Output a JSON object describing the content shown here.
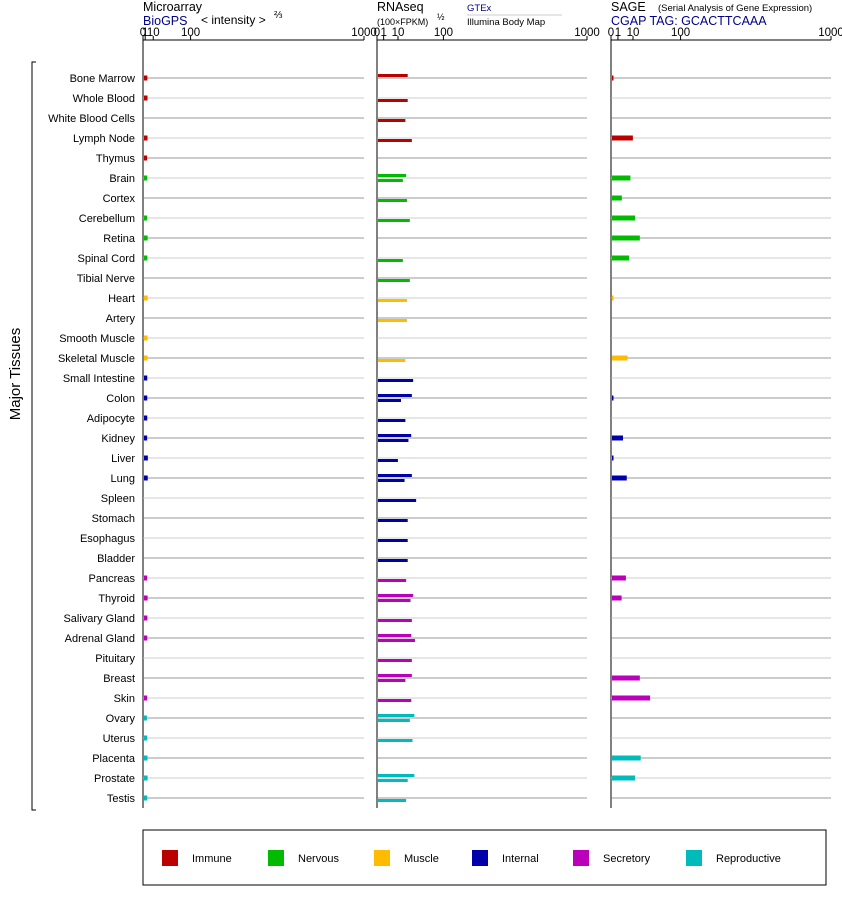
{
  "panels": {
    "microarray": {
      "title": "Microarray",
      "source": "BioGPS",
      "scale_label": "< intensity >",
      "scale_exp": "⅔"
    },
    "rnaseq": {
      "title": "RNAseq",
      "scale_label": "(100×FPKM)",
      "scale_exp": "½",
      "source_1": "GTEx",
      "source_2": "Illumina Body Map"
    },
    "sage": {
      "title": "SAGE",
      "subtitle": "(Serial Analysis of Gene Expression)",
      "source": "CGAP TAG: GCACTTCAAA"
    }
  },
  "y_axis_label": "Major Tissues",
  "colors": {
    "immune": "#bb0000",
    "nervous": "#00bb00",
    "muscle": "#ffbb00",
    "internal": "#0000aa",
    "secretory": "#bb00bb",
    "reproductive": "#00bbbb",
    "axis": "#000000",
    "row_line_dark": "#777777",
    "row_line_light": "#bbbbbb",
    "source_text": "#000088"
  },
  "legend": [
    {
      "key": "immune",
      "label": "Immune"
    },
    {
      "key": "nervous",
      "label": "Nervous"
    },
    {
      "key": "muscle",
      "label": "Muscle"
    },
    {
      "key": "internal",
      "label": "Internal"
    },
    {
      "key": "secretory",
      "label": "Secretory"
    },
    {
      "key": "reproductive",
      "label": "Reproductive"
    }
  ],
  "chart_data": {
    "type": "bar",
    "scale": "power",
    "ticks": [
      0,
      1,
      10,
      100,
      1000
    ],
    "tick_labels": [
      "0",
      "1",
      "10",
      "100",
      "1000"
    ],
    "xlim": [
      0,
      1000
    ],
    "grid": true,
    "legend_position": "bottom",
    "categories": [
      "Bone Marrow",
      "Whole Blood",
      "White Blood Cells",
      "Lymph Node",
      "Thymus",
      "Brain",
      "Cortex",
      "Cerebellum",
      "Retina",
      "Spinal Cord",
      "Tibial Nerve",
      "Heart",
      "Artery",
      "Smooth Muscle",
      "Skeletal Muscle",
      "Small Intestine",
      "Colon",
      "Adipocyte",
      "Kidney",
      "Liver",
      "Lung",
      "Spleen",
      "Stomach",
      "Esophagus",
      "Bladder",
      "Pancreas",
      "Thyroid",
      "Salivary Gland",
      "Adrenal Gland",
      "Pituitary",
      "Breast",
      "Skin",
      "Ovary",
      "Uterus",
      "Placenta",
      "Prostate",
      "Testis"
    ],
    "groups": [
      "immune",
      "immune",
      "immune",
      "immune",
      "immune",
      "nervous",
      "nervous",
      "nervous",
      "nervous",
      "nervous",
      "nervous",
      "muscle",
      "muscle",
      "muscle",
      "muscle",
      "internal",
      "internal",
      "internal",
      "internal",
      "internal",
      "internal",
      "internal",
      "internal",
      "internal",
      "internal",
      "secretory",
      "secretory",
      "secretory",
      "secretory",
      "secretory",
      "secretory",
      "secretory",
      "reproductive",
      "reproductive",
      "reproductive",
      "reproductive",
      "reproductive"
    ],
    "series": [
      {
        "name": "Microarray",
        "exponent": 0.667,
        "values": [
          1.9,
          2.0,
          null,
          2.0,
          1.7,
          1.8,
          null,
          1.7,
          2.1,
          1.9,
          null,
          2.2,
          null,
          2.1,
          2.1,
          1.8,
          1.8,
          1.8,
          1.7,
          2.3,
          2.2,
          null,
          null,
          null,
          null,
          1.7,
          2.1,
          1.9,
          1.8,
          null,
          null,
          1.7,
          1.5,
          1.8,
          2.0,
          2.1,
          1.8
        ]
      },
      {
        "name": "GTEx",
        "exponent": 0.5,
        "values": [
          20,
          null,
          null,
          null,
          null,
          18,
          null,
          null,
          null,
          null,
          null,
          null,
          null,
          null,
          null,
          null,
          26,
          null,
          25,
          null,
          26,
          null,
          null,
          null,
          null,
          null,
          28,
          null,
          25,
          null,
          26,
          null,
          30,
          null,
          null,
          30,
          null
        ]
      },
      {
        "name": "Illumina Body Map",
        "exponent": 0.5,
        "values": [
          null,
          20,
          17,
          26,
          null,
          14,
          19,
          23,
          null,
          14,
          23,
          19,
          19,
          null,
          17,
          28,
          12,
          17,
          21,
          9,
          16,
          33,
          20,
          20,
          20,
          18,
          24,
          26,
          31,
          26,
          17,
          25,
          23,
          27,
          null,
          20,
          18
        ]
      },
      {
        "name": "SAGE",
        "exponent": 0.5,
        "values": [
          0.02,
          null,
          null,
          9,
          null,
          7,
          2,
          11,
          16,
          6,
          null,
          0.01,
          null,
          null,
          5,
          null,
          0.02,
          null,
          2.5,
          0.01,
          4.5,
          null,
          null,
          null,
          null,
          4,
          1.9,
          null,
          null,
          null,
          16,
          30,
          null,
          null,
          17,
          11,
          null
        ]
      }
    ]
  }
}
